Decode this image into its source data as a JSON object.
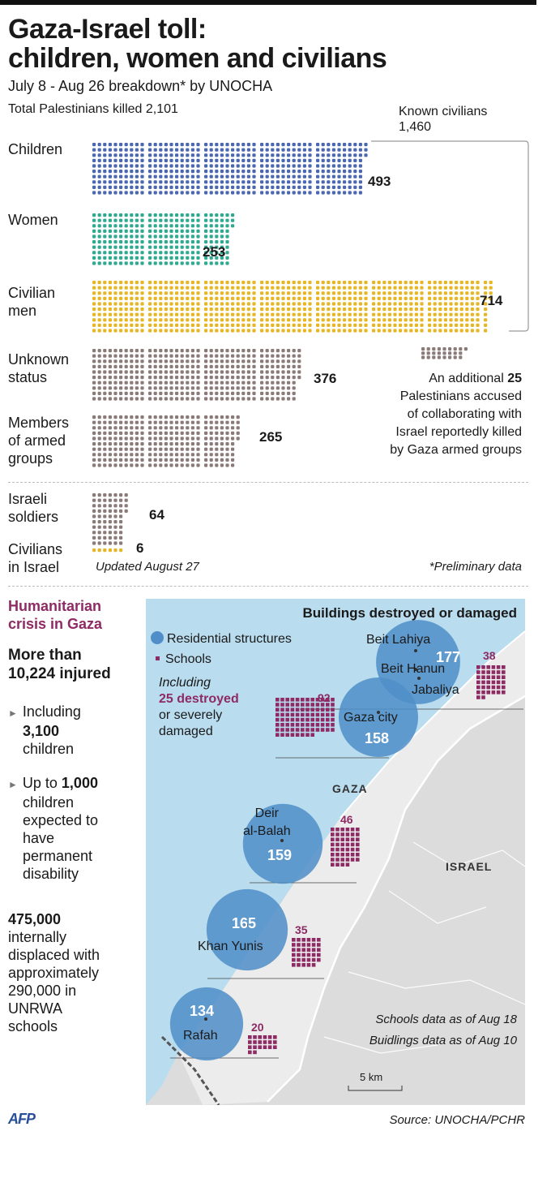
{
  "title_line1": "Gaza-Israel toll:",
  "title_line2": "children, women and civilians",
  "subtitle": "July 8 - Aug 26  breakdown* by UNOCHA",
  "total_label": "Total Palestinians killed  2,101",
  "known_civilians_label": "Known civilians",
  "known_civilians_value": "1,460",
  "updated": "Updated August 27",
  "preliminary": "*Preliminary data",
  "additional_note": {
    "line1_prefix": "An additional ",
    "line1_value": "25",
    "line2": "Palestinians accused",
    "line3": "of collaborating with",
    "line4": "Israel reportedly killed",
    "line5": "by Gaza armed groups"
  },
  "colors": {
    "children": "#4a67b0",
    "women": "#2fa98f",
    "civilian_men": "#e7b624",
    "other": "#8a7a78",
    "schools": "#8e2a64",
    "circles": "#4f8ec8",
    "sea": "#b9dcee",
    "land": "#dcdcdc",
    "gaza": "#ececec"
  },
  "chart_data": [
    {
      "type": "bar",
      "chart_style": "dot-matrix",
      "title": "Gaza-Israel toll: children, women and civilians",
      "subtitle": "July 8 - Aug 26  breakdown* by UNOCHA",
      "categories": [
        "Children",
        "Women",
        "Civilian men",
        "Unknown status",
        "Members of armed groups",
        "Israeli soldiers",
        "Civilians in Israel"
      ],
      "category_labels": [
        [
          "Children"
        ],
        [
          "Women"
        ],
        [
          "Civilian",
          "men"
        ],
        [
          "Unknown",
          "status"
        ],
        [
          "Members",
          "of armed",
          "groups"
        ],
        [
          "Israeli",
          "soldiers"
        ],
        [
          "Civilians",
          "in Israel"
        ]
      ],
      "values": [
        493,
        253,
        714,
        376,
        265,
        64,
        6
      ],
      "value_labels": [
        "493",
        "253",
        "714",
        "376",
        "265",
        "64",
        "6"
      ],
      "colors": [
        "#4a67b0",
        "#2fa98f",
        "#e7b624",
        "#8a7a78",
        "#8a7a78",
        "#8a7a78",
        "#e7b624"
      ],
      "extra_dots": 25,
      "grid": false,
      "legend": "none"
    },
    {
      "type": "scatter",
      "chart_style": "bubble-map",
      "title": "Buildings destroyed or damaged",
      "legend_residential": "Residential structures",
      "legend_schools": "Schools",
      "legend_including": "Including",
      "legend_destroyed": "25 destroyed",
      "legend_damaged1": "or severely",
      "legend_damaged2": "damaged",
      "locations": [
        {
          "name": "Beit Lahiya / Beit Hanun / Jabaliya",
          "residential": 177,
          "residential_label": "177",
          "schools": 38,
          "schools_label": "38"
        },
        {
          "name": "Gaza city",
          "residential": 158,
          "residential_label": "158",
          "schools": 92,
          "schools_label": "92"
        },
        {
          "name": "Deir al-Balah",
          "residential": 159,
          "residential_label": "159",
          "schools": 46,
          "schools_label": "46"
        },
        {
          "name": "Khan Yunis",
          "residential": 165,
          "residential_label": "165",
          "schools": 35,
          "schools_label": "35"
        },
        {
          "name": "Rafah",
          "residential": 134,
          "residential_label": "134",
          "schools": 20,
          "schools_label": "20"
        }
      ],
      "town_labels": {
        "beit_lahiya": "Beit Lahiya",
        "beit_hanun": "Beit Hanun",
        "jabaliya": "Jabaliya",
        "gaza_city": "Gaza city",
        "deir1": "Deir",
        "deir2": "al-Balah",
        "khan_yunis": "Khan Yunis",
        "rafah": "Rafah"
      },
      "region_labels": {
        "gaza": "GAZA",
        "israel": "ISRAEL"
      },
      "schools_note": "Schools data as of Aug 18",
      "buildings_note": "Buidlings data as of Aug 10",
      "scale": "5 km"
    }
  ],
  "sidebar": {
    "heading1": "Humanitarian",
    "heading2": "crisis in Gaza",
    "injured1": "More than",
    "injured2": "10,224 injured",
    "b1_line1": "Including",
    "b1_value": "3,100",
    "b1_line3": "children",
    "b2_prefix": "Up to ",
    "b2_value": "1,000",
    "b2_line2": "children",
    "b2_line3": "expected to",
    "b2_line4": "have",
    "b2_line5": "permanent",
    "b2_line6": "disability",
    "displaced_value": "475,000",
    "displaced_line2": "internally",
    "displaced_line3": "displaced with",
    "displaced_line4": "approximately",
    "displaced_line5": "290,000 in",
    "displaced_line6": "UNRWA",
    "displaced_line7": "schools"
  },
  "footer": {
    "logo": "AFP",
    "source": "Source: UNOCHA/PCHR"
  }
}
